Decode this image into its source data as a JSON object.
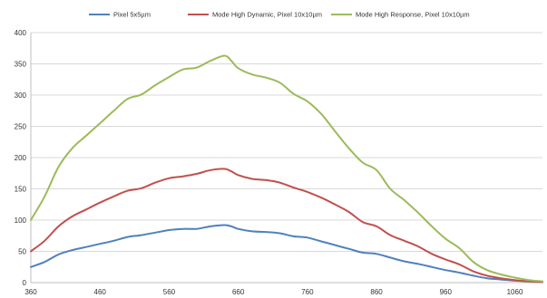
{
  "chart_data": {
    "type": "line",
    "title": "",
    "xlabel": "",
    "ylabel": "",
    "xlim": [
      360,
      1100
    ],
    "ylim": [
      0,
      400
    ],
    "x_ticks": [
      360,
      460,
      560,
      660,
      760,
      860,
      960,
      1060
    ],
    "x_tick_labels": [
      "360",
      "460",
      "560",
      "660",
      "760",
      "860",
      "960",
      "1060"
    ],
    "y_ticks": [
      0,
      50,
      100,
      150,
      200,
      250,
      300,
      350,
      400
    ],
    "y_tick_labels": [
      "0",
      "50",
      "100",
      "150",
      "200",
      "250",
      "300",
      "350",
      "400"
    ],
    "grid": "horizontal",
    "legend_position": "top",
    "series": [
      {
        "name": "Pixel 5x5µm",
        "color": "#4f81bd",
        "x": [
          360,
          380,
          400,
          420,
          440,
          460,
          480,
          500,
          520,
          540,
          560,
          580,
          600,
          620,
          640,
          650,
          660,
          680,
          700,
          720,
          740,
          760,
          780,
          800,
          820,
          840,
          860,
          880,
          900,
          920,
          940,
          960,
          980,
          1000,
          1020,
          1040,
          1060,
          1080,
          1100
        ],
        "y": [
          25,
          33,
          45,
          52,
          57,
          62,
          67,
          73,
          76,
          80,
          84,
          86,
          86,
          90,
          92,
          90,
          86,
          82,
          81,
          79,
          74,
          72,
          66,
          60,
          54,
          48,
          46,
          40,
          34,
          30,
          25,
          20,
          16,
          11,
          7,
          5,
          3,
          2,
          1
        ]
      },
      {
        "name": "Mode High Dynamic, Pixel 10x10µm",
        "color": "#c0504d",
        "x": [
          360,
          380,
          400,
          420,
          440,
          460,
          480,
          500,
          520,
          540,
          560,
          580,
          600,
          620,
          640,
          650,
          660,
          680,
          700,
          720,
          740,
          760,
          780,
          800,
          820,
          840,
          860,
          880,
          900,
          920,
          940,
          960,
          980,
          1000,
          1020,
          1040,
          1060,
          1080,
          1100
        ],
        "y": [
          50,
          67,
          90,
          106,
          117,
          128,
          138,
          147,
          151,
          160,
          167,
          170,
          174,
          180,
          182,
          178,
          172,
          166,
          164,
          160,
          152,
          145,
          136,
          125,
          113,
          97,
          90,
          76,
          67,
          58,
          46,
          37,
          29,
          18,
          11,
          7,
          4,
          2,
          1
        ]
      },
      {
        "name": "Mode High Response, Pixel 10x10µm",
        "color": "#9bbb59",
        "x": [
          360,
          380,
          400,
          420,
          440,
          460,
          480,
          500,
          520,
          540,
          560,
          580,
          600,
          620,
          640,
          650,
          660,
          680,
          700,
          720,
          740,
          760,
          780,
          800,
          820,
          840,
          860,
          880,
          900,
          920,
          940,
          960,
          980,
          1000,
          1020,
          1040,
          1060,
          1080,
          1100
        ],
        "y": [
          100,
          138,
          185,
          215,
          235,
          255,
          275,
          294,
          301,
          316,
          329,
          341,
          344,
          355,
          363,
          355,
          343,
          333,
          328,
          320,
          302,
          290,
          270,
          242,
          215,
          192,
          180,
          150,
          132,
          112,
          90,
          70,
          55,
          33,
          20,
          13,
          8,
          4,
          2
        ]
      }
    ]
  }
}
